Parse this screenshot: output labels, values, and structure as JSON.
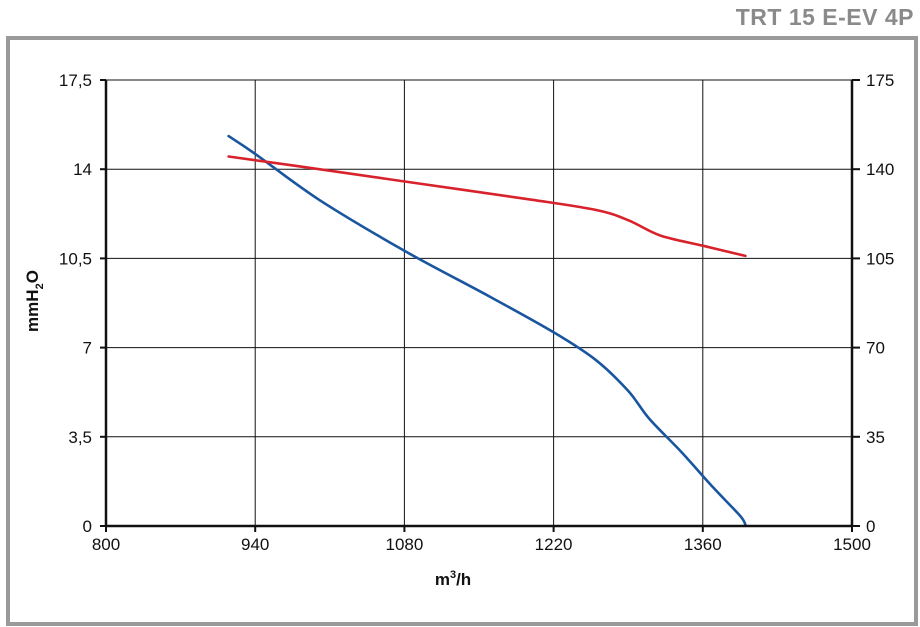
{
  "model_title": "TRT 15 E-EV 4P",
  "chart_data": {
    "type": "line",
    "xlabel_base": "m",
    "xlabel_sup": "3",
    "xlabel_rest": "/h",
    "ylabel_left_base": "mmH",
    "ylabel_left_sub": "2",
    "ylabel_left_rest": "O",
    "xlim": [
      800,
      1500
    ],
    "x_ticks": [
      "800",
      "940",
      "1080",
      "1220",
      "1360",
      "1500"
    ],
    "ylim_left": [
      0,
      17.5
    ],
    "y_ticks_left": [
      "0",
      "3,5",
      "7",
      "10,5",
      "14",
      "17,5"
    ],
    "ylim_right": [
      0,
      175
    ],
    "y_ticks_right": [
      "0",
      "35",
      "70",
      "105",
      "140",
      "175"
    ],
    "grid": true,
    "series": [
      {
        "axis": "left",
        "color": "#1a56a0",
        "points": [
          [
            915,
            15.3
          ],
          [
            940,
            14.6
          ],
          [
            1000,
            12.8
          ],
          [
            1080,
            10.8
          ],
          [
            1160,
            9.0
          ],
          [
            1220,
            7.6
          ],
          [
            1260,
            6.5
          ],
          [
            1290,
            5.3
          ],
          [
            1310,
            4.2
          ],
          [
            1340,
            2.9
          ],
          [
            1370,
            1.5
          ],
          [
            1395,
            0.4
          ],
          [
            1400,
            0.05
          ]
        ]
      },
      {
        "axis": "right",
        "color": "#d8222c",
        "points": [
          [
            915,
            145
          ],
          [
            1000,
            140
          ],
          [
            1100,
            134
          ],
          [
            1200,
            128
          ],
          [
            1260,
            124
          ],
          [
            1290,
            120
          ],
          [
            1320,
            114
          ],
          [
            1360,
            110
          ],
          [
            1400,
            106
          ]
        ]
      }
    ]
  }
}
